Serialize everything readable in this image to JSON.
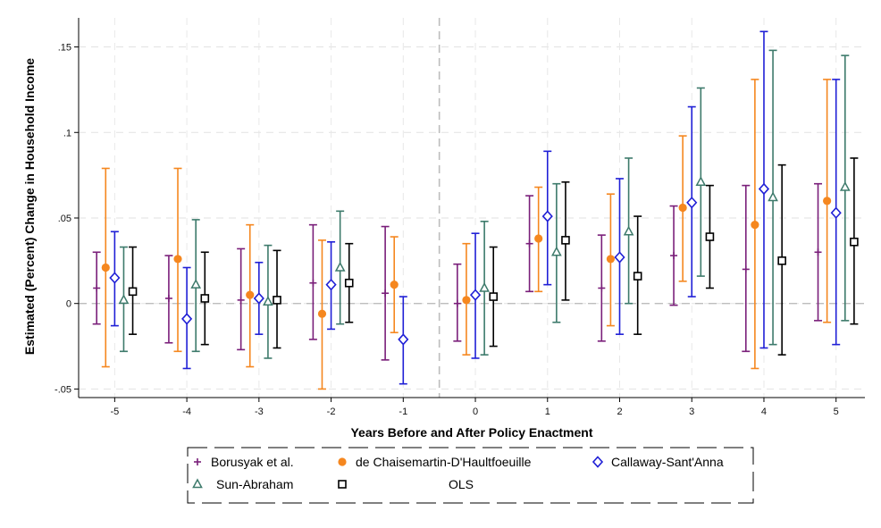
{
  "chart_data": {
    "type": "scatter",
    "title": "",
    "xlabel": "Years Before and After Policy Enactment",
    "ylabel": "Estimated (Percent) Change in Household Income",
    "xlim": [
      -5.5,
      5.4
    ],
    "ylim": [
      -0.055,
      0.167
    ],
    "x_ticks": [
      -5,
      -4,
      -3,
      -2,
      -1,
      0,
      1,
      2,
      3,
      4,
      5
    ],
    "x_tick_labels": [
      "-5",
      "-4",
      "-3",
      "-2",
      "-1",
      "0",
      "1",
      "2",
      "3",
      "4",
      "5"
    ],
    "y_ticks": [
      -0.05,
      0,
      0.05,
      0.1,
      0.15
    ],
    "y_tick_labels": [
      "-.05",
      "0",
      ".05",
      ".1",
      ".15"
    ],
    "grid": true,
    "reference_lines": {
      "y": 0,
      "x": -0.5
    },
    "legend_position": "bottom",
    "series": [
      {
        "name": "Borusyak et al.",
        "marker": "plus",
        "color": "#7a1f7a",
        "offset": -0.25,
        "points": [
          {
            "x": -5,
            "y": 0.009,
            "lo": -0.012,
            "hi": 0.03
          },
          {
            "x": -4,
            "y": 0.003,
            "lo": -0.023,
            "hi": 0.028
          },
          {
            "x": -3,
            "y": 0.002,
            "lo": -0.027,
            "hi": 0.032
          },
          {
            "x": -2,
            "y": 0.012,
            "lo": -0.021,
            "hi": 0.046
          },
          {
            "x": -1,
            "y": 0.006,
            "lo": -0.033,
            "hi": 0.045
          },
          {
            "x": 0,
            "y": 0.0,
            "lo": -0.022,
            "hi": 0.023
          },
          {
            "x": 1,
            "y": 0.035,
            "lo": 0.007,
            "hi": 0.063
          },
          {
            "x": 2,
            "y": 0.009,
            "lo": -0.022,
            "hi": 0.04
          },
          {
            "x": 3,
            "y": 0.028,
            "lo": -0.001,
            "hi": 0.057
          },
          {
            "x": 4,
            "y": 0.02,
            "lo": -0.028,
            "hi": 0.069
          },
          {
            "x": 5,
            "y": 0.03,
            "lo": -0.01,
            "hi": 0.07
          }
        ]
      },
      {
        "name": "de Chaisemartin-D'Haultfoeuille",
        "marker": "circle",
        "color": "#f5871f",
        "offset": -0.125,
        "points": [
          {
            "x": -5,
            "y": 0.021,
            "lo": -0.037,
            "hi": 0.079
          },
          {
            "x": -4,
            "y": 0.026,
            "lo": -0.028,
            "hi": 0.079
          },
          {
            "x": -3,
            "y": 0.005,
            "lo": -0.037,
            "hi": 0.046
          },
          {
            "x": -2,
            "y": -0.006,
            "lo": -0.05,
            "hi": 0.037
          },
          {
            "x": -1,
            "y": 0.011,
            "lo": -0.017,
            "hi": 0.039
          },
          {
            "x": 0,
            "y": 0.002,
            "lo": -0.03,
            "hi": 0.035
          },
          {
            "x": 1,
            "y": 0.038,
            "lo": 0.007,
            "hi": 0.068
          },
          {
            "x": 2,
            "y": 0.026,
            "lo": -0.013,
            "hi": 0.064
          },
          {
            "x": 3,
            "y": 0.056,
            "lo": 0.013,
            "hi": 0.098
          },
          {
            "x": 4,
            "y": 0.046,
            "lo": -0.038,
            "hi": 0.131
          },
          {
            "x": 5,
            "y": 0.06,
            "lo": -0.011,
            "hi": 0.131
          }
        ]
      },
      {
        "name": "Callaway-Sant'Anna",
        "marker": "diamond",
        "color": "#1f1fd6",
        "offset": 0,
        "points": [
          {
            "x": -5,
            "y": 0.015,
            "lo": -0.013,
            "hi": 0.042
          },
          {
            "x": -4,
            "y": -0.009,
            "lo": -0.038,
            "hi": 0.021
          },
          {
            "x": -3,
            "y": 0.003,
            "lo": -0.018,
            "hi": 0.024
          },
          {
            "x": -2,
            "y": 0.011,
            "lo": -0.015,
            "hi": 0.036
          },
          {
            "x": -1,
            "y": -0.021,
            "lo": -0.047,
            "hi": 0.004
          },
          {
            "x": 0,
            "y": 0.005,
            "lo": -0.032,
            "hi": 0.041
          },
          {
            "x": 1,
            "y": 0.051,
            "lo": 0.011,
            "hi": 0.089
          },
          {
            "x": 2,
            "y": 0.027,
            "lo": -0.018,
            "hi": 0.073
          },
          {
            "x": 3,
            "y": 0.059,
            "lo": 0.004,
            "hi": 0.115
          },
          {
            "x": 4,
            "y": 0.067,
            "lo": -0.026,
            "hi": 0.159
          },
          {
            "x": 5,
            "y": 0.053,
            "lo": -0.024,
            "hi": 0.131
          }
        ]
      },
      {
        "name": "Sun-Abraham",
        "marker": "triangle",
        "color": "#3d7a6b",
        "offset": 0.125,
        "points": [
          {
            "x": -5,
            "y": 0.002,
            "lo": -0.028,
            "hi": 0.033
          },
          {
            "x": -4,
            "y": 0.011,
            "lo": -0.028,
            "hi": 0.049
          },
          {
            "x": -3,
            "y": 0.001,
            "lo": -0.032,
            "hi": 0.034
          },
          {
            "x": -2,
            "y": 0.021,
            "lo": -0.012,
            "hi": 0.054
          },
          {
            "x": 0,
            "y": 0.009,
            "lo": -0.03,
            "hi": 0.048
          },
          {
            "x": 1,
            "y": 0.03,
            "lo": -0.011,
            "hi": 0.07
          },
          {
            "x": 2,
            "y": 0.042,
            "lo": 0.0,
            "hi": 0.085
          },
          {
            "x": 3,
            "y": 0.071,
            "lo": 0.016,
            "hi": 0.126
          },
          {
            "x": 4,
            "y": 0.062,
            "lo": -0.024,
            "hi": 0.148
          },
          {
            "x": 5,
            "y": 0.068,
            "lo": -0.01,
            "hi": 0.145
          }
        ]
      },
      {
        "name": "OLS",
        "marker": "square",
        "color": "#000000",
        "offset": 0.25,
        "points": [
          {
            "x": -5,
            "y": 0.007,
            "lo": -0.018,
            "hi": 0.033
          },
          {
            "x": -4,
            "y": 0.003,
            "lo": -0.024,
            "hi": 0.03
          },
          {
            "x": -3,
            "y": 0.002,
            "lo": -0.026,
            "hi": 0.031
          },
          {
            "x": -2,
            "y": 0.012,
            "lo": -0.011,
            "hi": 0.035
          },
          {
            "x": 0,
            "y": 0.004,
            "lo": -0.025,
            "hi": 0.033
          },
          {
            "x": 1,
            "y": 0.037,
            "lo": 0.002,
            "hi": 0.071
          },
          {
            "x": 2,
            "y": 0.016,
            "lo": -0.018,
            "hi": 0.051
          },
          {
            "x": 3,
            "y": 0.039,
            "lo": 0.009,
            "hi": 0.069
          },
          {
            "x": 4,
            "y": 0.025,
            "lo": -0.03,
            "hi": 0.081
          },
          {
            "x": 5,
            "y": 0.036,
            "lo": -0.012,
            "hi": 0.085
          }
        ]
      }
    ]
  }
}
